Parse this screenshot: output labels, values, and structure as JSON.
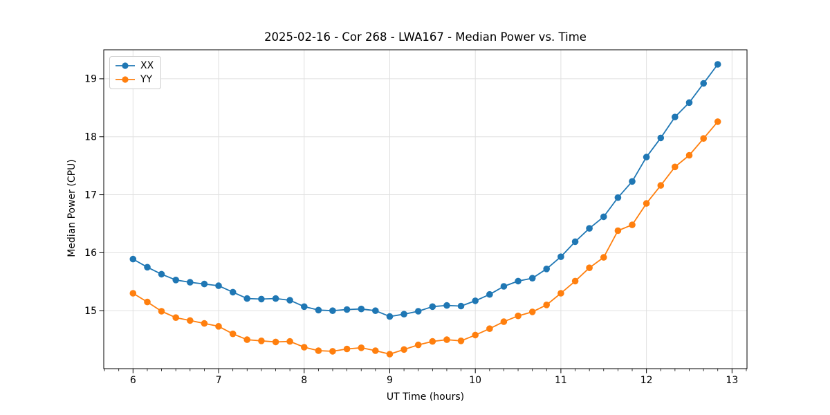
{
  "chart_data": {
    "type": "line",
    "title": "2025-02-16 - Cor 268 - LWA167 - Median Power vs. Time",
    "xlabel": "UT Time (hours)",
    "ylabel": "Median Power (CPU)",
    "xlim": [
      5.658,
      13.175
    ],
    "ylim": [
      14.0,
      19.5
    ],
    "x_ticks": [
      6,
      7,
      8,
      9,
      10,
      11,
      12,
      13
    ],
    "y_ticks": [
      15,
      16,
      17,
      18,
      19
    ],
    "x_minor_tick_interval_hours": 0.1667,
    "grid": true,
    "grid_color": "#e0e0e0",
    "axis_color": "#000000",
    "legend_position": "upper-left",
    "x": [
      6.0,
      6.167,
      6.333,
      6.5,
      6.667,
      6.833,
      7.0,
      7.167,
      7.333,
      7.5,
      7.667,
      7.833,
      8.0,
      8.167,
      8.333,
      8.5,
      8.667,
      8.833,
      9.0,
      9.167,
      9.333,
      9.5,
      9.667,
      9.833,
      10.0,
      10.167,
      10.333,
      10.5,
      10.667,
      10.833,
      11.0,
      11.167,
      11.333,
      11.5,
      11.667,
      11.833,
      12.0,
      12.167,
      12.333,
      12.5,
      12.667,
      12.833
    ],
    "series": [
      {
        "name": "XX",
        "color": "#1f77b4",
        "values": [
          15.89,
          15.75,
          15.63,
          15.53,
          15.49,
          15.46,
          15.43,
          15.32,
          15.21,
          15.2,
          15.21,
          15.18,
          15.07,
          15.01,
          15.0,
          15.02,
          15.03,
          15.0,
          14.9,
          14.94,
          14.99,
          15.07,
          15.09,
          15.08,
          15.17,
          15.28,
          15.42,
          15.51,
          15.56,
          15.72,
          15.93,
          16.19,
          16.42,
          16.62,
          16.95,
          17.23,
          17.65,
          17.98,
          18.34,
          18.59,
          18.92,
          19.25
        ]
      },
      {
        "name": "YY",
        "color": "#ff7f0e",
        "values": [
          15.3,
          15.15,
          14.99,
          14.88,
          14.83,
          14.78,
          14.73,
          14.6,
          14.5,
          14.48,
          14.46,
          14.47,
          14.37,
          14.31,
          14.3,
          14.34,
          14.36,
          14.31,
          14.25,
          14.33,
          14.41,
          14.47,
          14.5,
          14.48,
          14.58,
          14.69,
          14.81,
          14.91,
          14.98,
          15.1,
          15.3,
          15.51,
          15.74,
          15.92,
          16.38,
          16.48,
          16.85,
          17.16,
          17.48,
          17.68,
          17.97,
          18.26
        ]
      }
    ]
  }
}
